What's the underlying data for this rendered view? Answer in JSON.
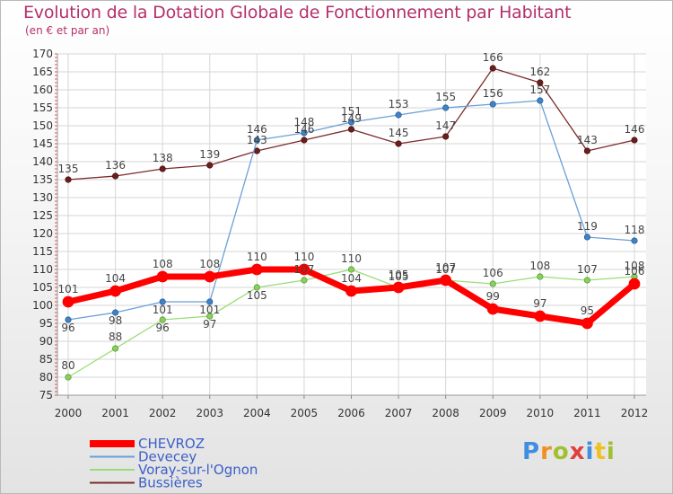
{
  "title": "Evolution de la Dotation Globale de Fonctionnement par Habitant",
  "subtitle": "(en € et par an)",
  "logo_text": "Proxiti",
  "chart_data": {
    "type": "line",
    "x": [
      "2000",
      "2001",
      "2002",
      "2003",
      "2004",
      "2005",
      "2006",
      "2007",
      "2008",
      "2009",
      "2010",
      "2011",
      "2012"
    ],
    "ylim": [
      75,
      170
    ],
    "yticks": [
      75,
      80,
      85,
      90,
      95,
      100,
      105,
      110,
      115,
      120,
      125,
      130,
      135,
      140,
      145,
      150,
      155,
      160,
      165,
      170
    ],
    "grid": true,
    "legend_position": "bottom-left",
    "series": [
      {
        "name": "CHEVROZ",
        "color": "#ff0000",
        "values": [
          101,
          104,
          108,
          108,
          110,
          110,
          104,
          105,
          107,
          99,
          97,
          95,
          106
        ]
      },
      {
        "name": "Devecey",
        "color": "#6a9fd8",
        "values": [
          96,
          98,
          101,
          101,
          146,
          148,
          151,
          153,
          155,
          156,
          157,
          119,
          118
        ]
      },
      {
        "name": "Voray-sur-l'Ognon",
        "color": "#99dd77",
        "values": [
          80,
          88,
          96,
          97,
          105,
          107,
          110,
          105,
          107,
          106,
          108,
          107,
          108
        ]
      },
      {
        "name": "Bussières",
        "color": "#7b2b2b",
        "values": [
          135,
          136,
          138,
          139,
          143,
          146,
          149,
          145,
          147,
          166,
          162,
          143,
          146
        ]
      }
    ]
  }
}
